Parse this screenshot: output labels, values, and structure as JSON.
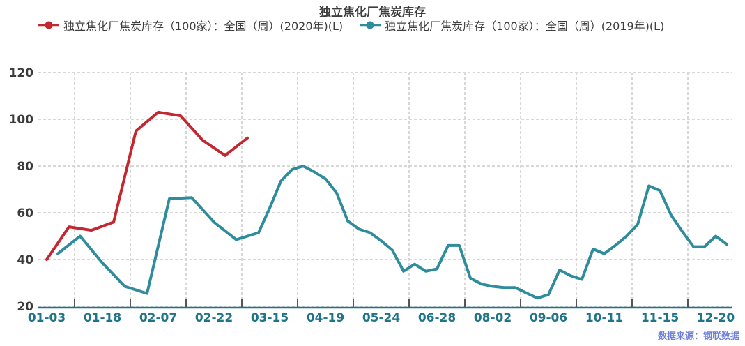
{
  "title": "独立焦化厂焦炭库存",
  "legend": [
    {
      "label": "独立焦化厂焦炭库存（100家）：全国（周）(2020年)(L)",
      "color": "#c3272f"
    },
    {
      "label": "独立焦化厂焦炭库存（100家）：全国（周）(2019年)(L)",
      "color": "#2e8c9c"
    }
  ],
  "source_note": "数据来源：钢联数据",
  "colors": {
    "series_2020": "#c3272f",
    "series_2019": "#2e8c9c",
    "axis_line": "#1f7287",
    "x_label": "#1e7488",
    "y_label": "#3b3b3b",
    "gridline": "#cccccc",
    "tick": "#555555",
    "source_text": "#6f7fd8"
  },
  "chart_data": {
    "type": "line",
    "title": "独立焦化厂焦炭库存",
    "x_axis": {
      "tick_labels": [
        "01-03",
        "01-18",
        "02-07",
        "02-22",
        "03-15",
        "04-19",
        "05-24",
        "06-28",
        "08-02",
        "09-06",
        "10-11",
        "11-15",
        "12-20"
      ],
      "label_slots": [
        0,
        5,
        10,
        15,
        20,
        25,
        30,
        35,
        40,
        45,
        50,
        55,
        60
      ],
      "gridline_slots_between_labels": true
    },
    "y_axis": {
      "min": 20,
      "max": 120,
      "step": 20,
      "ticks": [
        120,
        100,
        80,
        60,
        40,
        20
      ]
    },
    "grid": "dashed",
    "legend_position": "top",
    "series": [
      {
        "name": "独立焦化厂焦炭库存（100家）：全国（周）(2020年)(L)",
        "color": "#c3272f",
        "points": [
          [
            0,
            40
          ],
          [
            2,
            54
          ],
          [
            4,
            52.5
          ],
          [
            6,
            56
          ],
          [
            8,
            95
          ],
          [
            10,
            103
          ],
          [
            12,
            101.5
          ],
          [
            14,
            91
          ],
          [
            16,
            84.5
          ],
          [
            18,
            92
          ]
        ]
      },
      {
        "name": "独立焦化厂焦炭库存（100家）：全国（周）(2019年)(L)",
        "color": "#2e8c9c",
        "points": [
          [
            1,
            42.5
          ],
          [
            3,
            50
          ],
          [
            5,
            38.5
          ],
          [
            7,
            28.5
          ],
          [
            9,
            25.5
          ],
          [
            11,
            66
          ],
          [
            13,
            66.5
          ],
          [
            15,
            56
          ],
          [
            17,
            48.5
          ],
          [
            19,
            51.5
          ],
          [
            20,
            62
          ],
          [
            21,
            73.5
          ],
          [
            22,
            78.5
          ],
          [
            23,
            80
          ],
          [
            24,
            77.5
          ],
          [
            25,
            74.5
          ],
          [
            26,
            68.5
          ],
          [
            27,
            56.5
          ],
          [
            28,
            53
          ],
          [
            29,
            51.5
          ],
          [
            30,
            48
          ],
          [
            31,
            44
          ],
          [
            32,
            35
          ],
          [
            33,
            38
          ],
          [
            34,
            35
          ],
          [
            35,
            36
          ],
          [
            36,
            46
          ],
          [
            37,
            46
          ],
          [
            38,
            32
          ],
          [
            39,
            29.5
          ],
          [
            40,
            28.5
          ],
          [
            41,
            28
          ],
          [
            42,
            28
          ],
          [
            44,
            23.5
          ],
          [
            45,
            25
          ],
          [
            46,
            35.5
          ],
          [
            47,
            33
          ],
          [
            48,
            31.5
          ],
          [
            49,
            44.5
          ],
          [
            50,
            42.5
          ],
          [
            51,
            46
          ],
          [
            52,
            50
          ],
          [
            53,
            55
          ],
          [
            54,
            71.5
          ],
          [
            55,
            69.5
          ],
          [
            56,
            59
          ],
          [
            57,
            52
          ],
          [
            58,
            45.5
          ],
          [
            59,
            45.5
          ],
          [
            60,
            50
          ],
          [
            61,
            46.5
          ]
        ]
      }
    ]
  }
}
